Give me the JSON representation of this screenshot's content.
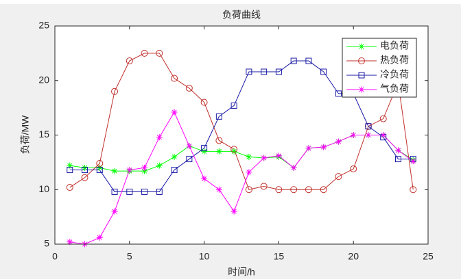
{
  "chart_data": {
    "type": "line",
    "title": "负荷曲线",
    "x_label": "时间/h",
    "y_label": "负荷/MW",
    "x": [
      1,
      2,
      3,
      4,
      5,
      6,
      7,
      8,
      9,
      10,
      11,
      12,
      13,
      14,
      15,
      16,
      17,
      18,
      19,
      20,
      21,
      22,
      23,
      24
    ],
    "series": [
      {
        "name": "电负荷",
        "color": "#00ff00",
        "marker": "star",
        "values": [
          12.2,
          12.0,
          12.0,
          11.7,
          11.7,
          11.7,
          12.2,
          13.0,
          14.0,
          13.5,
          13.5,
          13.5,
          13.0,
          12.9,
          13.0,
          12.0,
          13.8,
          13.9,
          14.4,
          15.0,
          15.0,
          15.0,
          13.6,
          12.7
        ]
      },
      {
        "name": "热负荷",
        "color": "#c0302b",
        "marker": "circle",
        "values": [
          10.2,
          11.1,
          12.4,
          19.0,
          21.8,
          22.5,
          22.5,
          20.2,
          19.3,
          18.0,
          14.5,
          13.7,
          10.0,
          10.3,
          10.0,
          10.0,
          10.0,
          10.0,
          11.2,
          11.9,
          15.8,
          16.5,
          19.8,
          10.0
        ]
      },
      {
        "name": "冷负荷",
        "color": "#1a1aa6",
        "marker": "square",
        "values": [
          11.8,
          11.8,
          11.8,
          9.8,
          9.8,
          9.8,
          9.8,
          11.8,
          12.8,
          13.8,
          16.7,
          17.7,
          20.8,
          20.8,
          20.8,
          21.8,
          21.8,
          20.8,
          18.8,
          18.8,
          15.8,
          14.8,
          12.8,
          12.8
        ]
      },
      {
        "name": "气负荷",
        "color": "#ff00ff",
        "marker": "star",
        "values": [
          5.2,
          5.0,
          5.6,
          8.0,
          11.8,
          12.0,
          14.8,
          17.1,
          14.0,
          11.0,
          10.0,
          8.0,
          11.6,
          12.9,
          13.1,
          12.0,
          13.8,
          13.9,
          14.4,
          15.0,
          15.0,
          15.0,
          13.6,
          12.6
        ]
      }
    ],
    "xlim": [
      0,
      25
    ],
    "xticks": [
      0,
      5,
      10,
      15,
      20,
      25
    ],
    "ylim": [
      5,
      25
    ],
    "yticks": [
      5,
      10,
      15,
      20,
      25
    ],
    "grid": false,
    "legend": "northeast"
  }
}
